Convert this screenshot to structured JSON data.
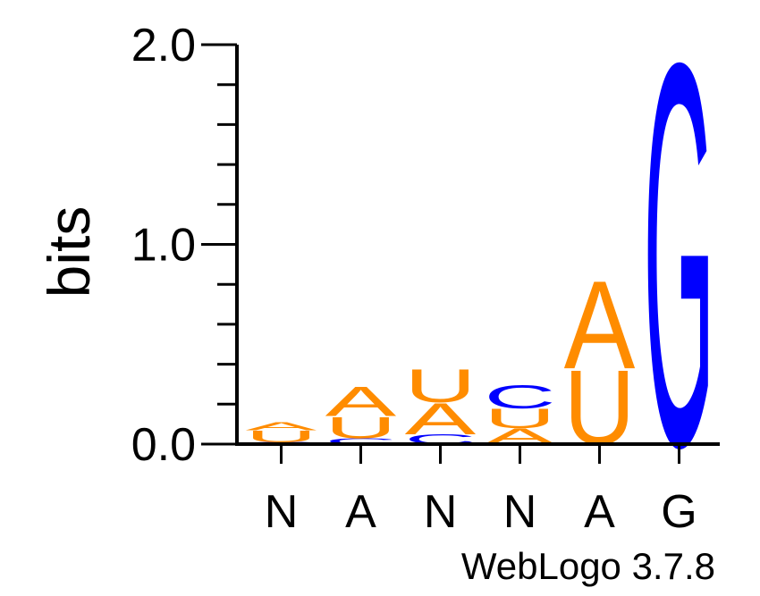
{
  "chart_data": {
    "type": "sequence-logo",
    "ylabel": "bits",
    "ylim": [
      0,
      2.0
    ],
    "y_ticks": [
      {
        "value": 0.0,
        "label": "0.0"
      },
      {
        "value": 1.0,
        "label": "1.0"
      },
      {
        "value": 2.0,
        "label": "2.0"
      }
    ],
    "y_minor_step": 0.2,
    "positions": [
      {
        "label": "N",
        "stack": [
          {
            "letter": "C",
            "bits": 0.01
          },
          {
            "letter": "U",
            "bits": 0.06
          },
          {
            "letter": "A",
            "bits": 0.04
          }
        ]
      },
      {
        "label": "A",
        "stack": [
          {
            "letter": "C",
            "bits": 0.03
          },
          {
            "letter": "U",
            "bits": 0.11
          },
          {
            "letter": "A",
            "bits": 0.15
          }
        ]
      },
      {
        "label": "N",
        "stack": [
          {
            "letter": "C",
            "bits": 0.05
          },
          {
            "letter": "A",
            "bits": 0.16
          },
          {
            "letter": "U",
            "bits": 0.17
          }
        ]
      },
      {
        "label": "N",
        "stack": [
          {
            "letter": "A",
            "bits": 0.08
          },
          {
            "letter": "U",
            "bits": 0.1
          },
          {
            "letter": "C",
            "bits": 0.12
          }
        ]
      },
      {
        "label": "A",
        "stack": [
          {
            "letter": "U",
            "bits": 0.38
          },
          {
            "letter": "A",
            "bits": 0.45
          }
        ]
      },
      {
        "label": "G",
        "stack": [
          {
            "letter": "G",
            "bits": 1.96
          }
        ]
      }
    ],
    "colors": {
      "A": "#ff8c00",
      "U": "#ff8c00",
      "C": "#0000ff",
      "G": "#0000ff"
    },
    "grid": false,
    "legend": "none"
  },
  "footer": {
    "credit": "WebLogo 3.7.8"
  }
}
